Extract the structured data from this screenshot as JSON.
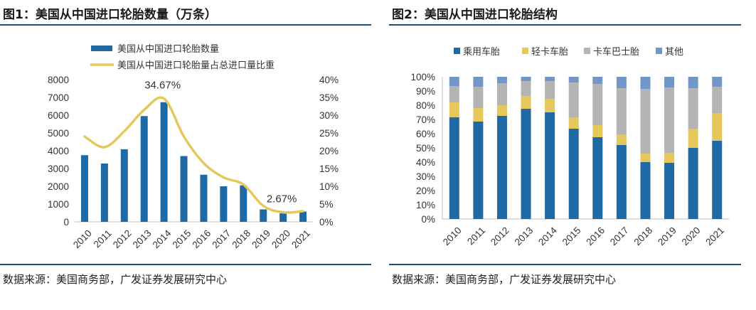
{
  "chart_data": [
    {
      "type": "bar",
      "title": "图1：美国从中国进口轮胎数量（万条）",
      "categories": [
        "2010",
        "2011",
        "2012",
        "2013",
        "2014",
        "2015",
        "2016",
        "2017",
        "2018",
        "2019",
        "2020",
        "2021"
      ],
      "series": [
        {
          "name": "美国从中国进口轮胎数量",
          "type": "bar",
          "axis": "left",
          "values": [
            3750,
            3280,
            4080,
            5950,
            6730,
            3700,
            2650,
            2000,
            2050,
            700,
            480,
            580
          ]
        },
        {
          "name": "美国从中国进口轮胎量占总进口量比重",
          "type": "line",
          "axis": "right",
          "values": [
            24.0,
            21.0,
            25.5,
            31.5,
            34.67,
            24.0,
            16.5,
            12.5,
            10.5,
            4.5,
            2.67,
            3.0
          ]
        }
      ],
      "ylim_left": [
        0,
        8000
      ],
      "yticks_left": [
        "0",
        "1000",
        "2000",
        "3000",
        "4000",
        "5000",
        "6000",
        "7000",
        "8000"
      ],
      "ylim_right": [
        0,
        40
      ],
      "yticks_right": [
        "0%",
        "5%",
        "10%",
        "15%",
        "20%",
        "25%",
        "30%",
        "35%",
        "40%"
      ],
      "annotations": [
        {
          "text": "34.67%",
          "category": "2014",
          "value": 34.67
        },
        {
          "text": "2.67%",
          "category": "2020",
          "value": 2.67
        }
      ],
      "colors": {
        "bar": "#1f6aa5",
        "line": "#e6c75c"
      },
      "legend": "top-left",
      "source": "数据来源：美国商务部，广发证券发展研究中心"
    },
    {
      "type": "bar",
      "stacked": true,
      "title": "图2：美国从中国进口轮胎结构",
      "categories": [
        "2010",
        "2011",
        "2012",
        "2013",
        "2014",
        "2015",
        "2016",
        "2017",
        "2018",
        "2019",
        "2020",
        "2021"
      ],
      "series": [
        {
          "name": "乘用车胎",
          "color": "#1f6aa5",
          "values": [
            71.5,
            68.5,
            72.5,
            77.5,
            75.0,
            63.5,
            57.5,
            52.0,
            40.0,
            39.5,
            50.0,
            55.0
          ]
        },
        {
          "name": "轻卡车胎",
          "color": "#e6c75c",
          "values": [
            10.5,
            9.5,
            7.5,
            9.0,
            9.5,
            8.0,
            8.5,
            7.5,
            6.0,
            7.0,
            13.5,
            19.5
          ]
        },
        {
          "name": "卡车巴士胎",
          "color": "#b4b4b4",
          "values": [
            11.5,
            15.0,
            15.5,
            10.5,
            12.5,
            24.5,
            29.0,
            32.5,
            45.5,
            46.0,
            28.5,
            18.5
          ]
        },
        {
          "name": "其他",
          "color": "#7196c8",
          "values": [
            6.5,
            7.0,
            4.5,
            3.0,
            3.0,
            4.0,
            5.0,
            8.0,
            8.5,
            7.5,
            8.0,
            7.0
          ]
        }
      ],
      "ylim": [
        0,
        100
      ],
      "yticks": [
        "0%",
        "10%",
        "20%",
        "30%",
        "40%",
        "50%",
        "60%",
        "70%",
        "80%",
        "90%",
        "100%"
      ],
      "legend": "top",
      "source": "数据来源：美国商务部，广发证券发展研究中心"
    }
  ]
}
